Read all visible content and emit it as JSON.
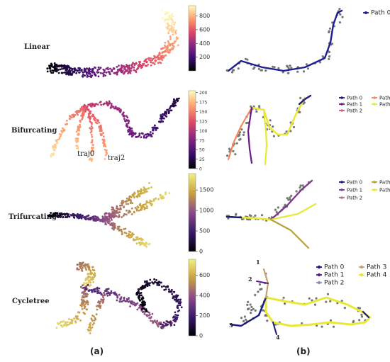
{
  "panel_labels": [
    "(a)",
    "(b)"
  ],
  "chart_data": [
    {
      "type": "scatter",
      "row_label": "Linear",
      "colorbar": {
        "ticks": [
          200,
          400,
          600,
          800
        ],
        "range": [
          0,
          950
        ],
        "scale": "inferno"
      }
    },
    {
      "type": "scatter",
      "row_label": "Bifurcating",
      "colorbar": {
        "ticks": [
          0,
          25,
          50,
          75,
          100,
          125,
          150,
          175,
          200
        ],
        "range": [
          0,
          205
        ],
        "scale": "inferno"
      },
      "annotations": [
        "traj0",
        "traj2"
      ]
    },
    {
      "type": "scatter",
      "row_label": "Trifurcating",
      "colorbar": {
        "ticks": [
          0,
          500,
          1000,
          1500
        ],
        "range": [
          0,
          1900
        ],
        "scale": "inferno"
      }
    },
    {
      "type": "scatter",
      "row_label": "Cycletree",
      "colorbar": {
        "ticks": [
          0,
          200,
          400,
          600
        ],
        "range": [
          0,
          760
        ],
        "scale": "inferno"
      }
    },
    {
      "type": "line",
      "legend": [
        {
          "name": "Path 0",
          "color": "#1f1f8f"
        }
      ]
    },
    {
      "type": "line",
      "legend": [
        {
          "name": "Path 0",
          "color": "#1a1a80"
        },
        {
          "name": "Path 3",
          "color": "#f08a5c"
        },
        {
          "name": "Path 1",
          "color": "#6a1a8a"
        },
        {
          "name": "Path 4",
          "color": "#e8e83a"
        },
        {
          "name": "Path 2",
          "color": "#c9608a"
        }
      ]
    },
    {
      "type": "line",
      "legend": [
        {
          "name": "Path 0",
          "color": "#1a1a70"
        },
        {
          "name": "Path 3",
          "color": "#b8a040"
        },
        {
          "name": "Path 1",
          "color": "#7a3a8a"
        },
        {
          "name": "Path 4",
          "color": "#e8e83a"
        },
        {
          "name": "Path 2",
          "color": "#9a7a8a"
        }
      ]
    },
    {
      "type": "line",
      "legend": [
        {
          "name": "Path 0",
          "color": "#1a1a80"
        },
        {
          "name": "Path 3",
          "color": "#c8a070"
        },
        {
          "name": "Path 1",
          "color": "#5a1a8a"
        },
        {
          "name": "Path 4",
          "color": "#e8e83a"
        },
        {
          "name": "Path 2",
          "color": "#9a8ab0"
        }
      ],
      "annotations": [
        "1",
        "2",
        "3",
        "4"
      ]
    }
  ]
}
